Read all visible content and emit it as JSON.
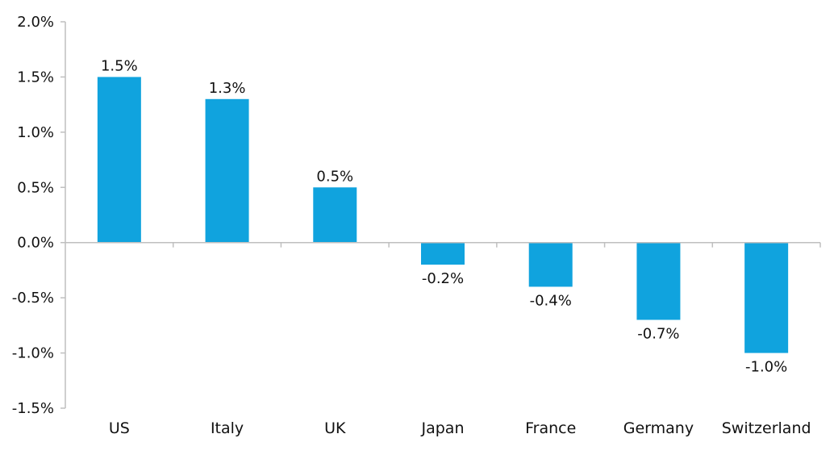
{
  "chart_data": {
    "type": "bar",
    "title": "",
    "xlabel": "",
    "ylabel": "",
    "categories": [
      "US",
      "Italy",
      "UK",
      "Japan",
      "France",
      "Germany",
      "Switzerland"
    ],
    "values": [
      1.5,
      1.3,
      0.5,
      -0.2,
      -0.4,
      -0.7,
      -1.0
    ],
    "data_labels": [
      "1.5%",
      "1.3%",
      "0.5%",
      "-0.2%",
      "-0.4%",
      "-0.7%",
      "-1.0%"
    ],
    "ylim": [
      -1.5,
      2.0
    ],
    "y_ticks": [
      2.0,
      1.5,
      1.0,
      0.5,
      0.0,
      -0.5,
      -1.0,
      -1.5
    ],
    "y_tick_labels": [
      "2.0%",
      "1.5%",
      "1.0%",
      "0.5%",
      "0.0%",
      "-0.5%",
      "-1.0%",
      "-1.5%"
    ],
    "grid": false,
    "legend": "none",
    "bar_color": "#10A3DE",
    "axis_color": "#BFBFBF"
  }
}
